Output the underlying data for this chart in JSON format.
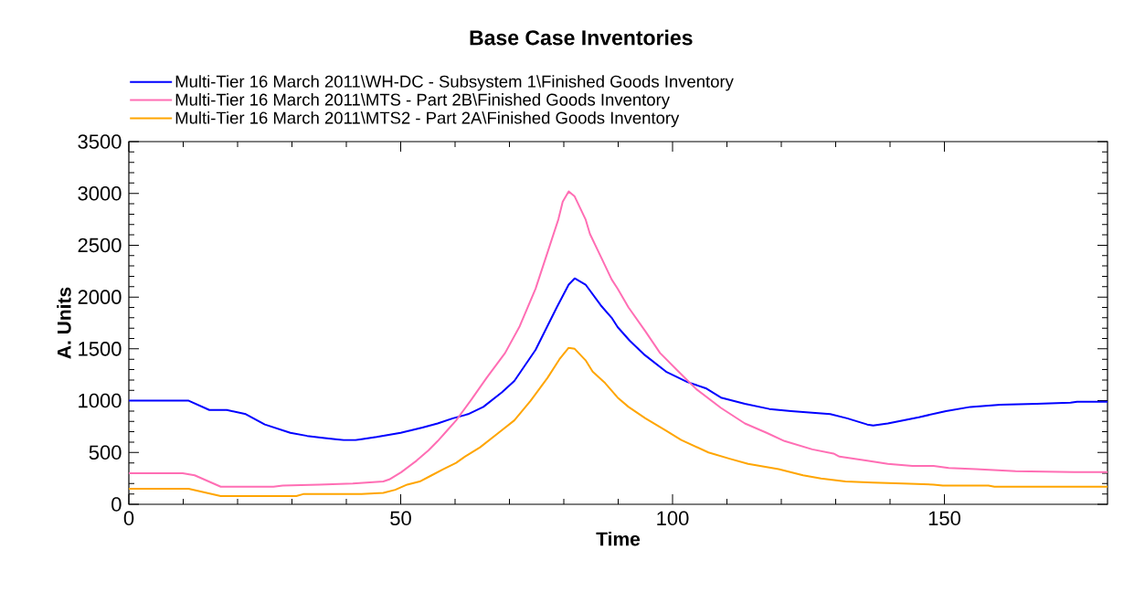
{
  "chart_data": {
    "type": "line",
    "title": "Base Case Inventories",
    "xlabel": "Time",
    "ylabel": "A. Units",
    "xlim": [
      0,
      180
    ],
    "ylim": [
      0,
      3500
    ],
    "xticks": [
      0,
      50,
      100,
      150
    ],
    "yticks": [
      0,
      500,
      1000,
      1500,
      2000,
      2500,
      3000,
      3500
    ],
    "legend": "top left",
    "marker": "none",
    "line_style": "solid",
    "series": [
      {
        "name": "Multi-Tier 16 March 2011\\WH-DC - Subsystem 1\\Finished Goods Inventory",
        "color": "#0000ff",
        "x": [
          0,
          11,
          14.8,
          18,
          21.5,
          25,
          29.7,
          32.8,
          36,
          39.5,
          41.7,
          45.6,
          50,
          54,
          56.8,
          59.6,
          62.4,
          65.2,
          68.6,
          70.9,
          74.8,
          78.7,
          80.9,
          82,
          84,
          86.8,
          88.8,
          89.9,
          92.1,
          94.9,
          98.8,
          102.7,
          106.1,
          108.9,
          113.3,
          117.8,
          121.8,
          129,
          132.1,
          135.8,
          136.9,
          139.6,
          145.3,
          150.3,
          154.8,
          160.3,
          167,
          173.2,
          174.4,
          180
        ],
        "values": [
          1000,
          1000,
          910,
          910,
          870,
          770,
          690,
          660,
          640,
          620,
          620,
          650,
          690,
          740,
          780,
          830,
          870,
          940,
          1080,
          1190,
          1490,
          1900,
          2120,
          2180,
          2120,
          1920,
          1800,
          1710,
          1580,
          1440,
          1280,
          1180,
          1120,
          1030,
          970,
          920,
          900,
          870,
          830,
          770,
          760,
          780,
          840,
          900,
          940,
          960,
          970,
          980,
          990,
          990
        ]
      },
      {
        "name": "Multi-Tier 16 March 2011\\MTS - Part 2B\\Finished Goods Inventory",
        "color": "#ff6eb4",
        "x": [
          0,
          9.9,
          12.1,
          16.9,
          26.6,
          28.3,
          35,
          41.2,
          46.8,
          47.9,
          50.1,
          52.9,
          55.1,
          56.8,
          58.5,
          60.2,
          63,
          65.8,
          69.2,
          71.9,
          74.8,
          77,
          79,
          79.8,
          80.9,
          82,
          84,
          84.8,
          86.8,
          88.8,
          89.9,
          91.9,
          95,
          97.7,
          101.1,
          104.4,
          108.9,
          113.3,
          117.3,
          120.6,
          125.7,
          129.6,
          130.7,
          135.8,
          139.6,
          144.1,
          148,
          150.8,
          155.8,
          163.1,
          173.8,
          180
        ],
        "values": [
          300,
          300,
          280,
          170,
          170,
          180,
          190,
          200,
          220,
          240,
          310,
          420,
          520,
          610,
          710,
          810,
          1010,
          1220,
          1460,
          1720,
          2080,
          2430,
          2750,
          2920,
          3020,
          2970,
          2750,
          2610,
          2390,
          2170,
          2080,
          1900,
          1670,
          1460,
          1280,
          1110,
          930,
          780,
          690,
          610,
          530,
          490,
          460,
          420,
          390,
          370,
          370,
          350,
          340,
          320,
          310,
          310
        ]
      },
      {
        "name": "Multi-Tier 16 March 2011\\MTS2 - Part 2A\\Finished Goods Inventory",
        "color": "#ffa500",
        "x": [
          0,
          11,
          16.9,
          30.8,
          32.2,
          42.8,
          46.8,
          49,
          51.2,
          53.5,
          55.7,
          57.9,
          60.2,
          61.8,
          64.6,
          68,
          70.9,
          73.9,
          77,
          79.2,
          80.9,
          82,
          84,
          85.3,
          87.6,
          89.9,
          91.9,
          95,
          98.8,
          101.6,
          106.6,
          110.5,
          113.9,
          119.5,
          124,
          127.3,
          131.8,
          136.9,
          142.4,
          148,
          149.7,
          158.1,
          159.2,
          180
        ],
        "values": [
          150,
          150,
          80,
          80,
          100,
          100,
          110,
          140,
          190,
          220,
          280,
          340,
          400,
          460,
          550,
          690,
          810,
          1000,
          1220,
          1400,
          1510,
          1500,
          1390,
          1280,
          1170,
          1030,
          940,
          830,
          710,
          620,
          500,
          440,
          390,
          340,
          280,
          250,
          220,
          210,
          200,
          190,
          180,
          180,
          170,
          170
        ]
      }
    ]
  }
}
